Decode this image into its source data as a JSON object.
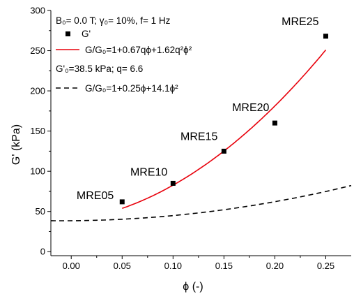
{
  "chart_data": {
    "type": "scatter",
    "xlabel": "ϕ (-)",
    "ylabel": "G' (kPa)",
    "xlim": [
      -0.02,
      0.275
    ],
    "ylim": [
      -5,
      300
    ],
    "x_ticks": [
      0.0,
      0.05,
      0.1,
      0.15,
      0.2,
      0.25
    ],
    "x_tick_labels": [
      "0.00",
      "0.05",
      "0.10",
      "0.15",
      "0.20",
      "0.25"
    ],
    "y_ticks": [
      0,
      50,
      100,
      150,
      200,
      250,
      300
    ],
    "y_tick_labels": [
      "0",
      "50",
      "100",
      "150",
      "200",
      "250",
      "300"
    ],
    "grid": false,
    "legend_position": "top-left",
    "conditions_text": "B₀= 0.0 T; γ₀= 10%, f= 1 Hz",
    "params_text": "G'₀=38.5 kPa; q= 6.6",
    "series": [
      {
        "name": "G'",
        "kind": "scatter",
        "marker": "square",
        "color": "#000000",
        "x": [
          0.05,
          0.1,
          0.15,
          0.2,
          0.25
        ],
        "y": [
          62,
          85,
          125,
          160,
          268
        ],
        "labels": [
          "MRE05",
          "MRE10",
          "MRE15",
          "MRE20",
          "MRE25"
        ]
      },
      {
        "name": "G/G₀=1+0.67qϕ+1.62q²ϕ²",
        "kind": "line",
        "color": "#e8000b",
        "dash": "solid",
        "model": {
          "G0": 38.5,
          "a": 0.67,
          "b": 1.62,
          "q": 6.6
        },
        "x_range": [
          0.05,
          0.25
        ]
      },
      {
        "name": "G/G₀=1+0.25ϕ+14.1ϕ²",
        "kind": "line",
        "color": "#000000",
        "dash": "dashed",
        "model": {
          "G0": 38.5,
          "a": 0.25,
          "b": 14.1,
          "q": 1
        },
        "x_range": [
          -0.02,
          0.275
        ]
      }
    ]
  }
}
